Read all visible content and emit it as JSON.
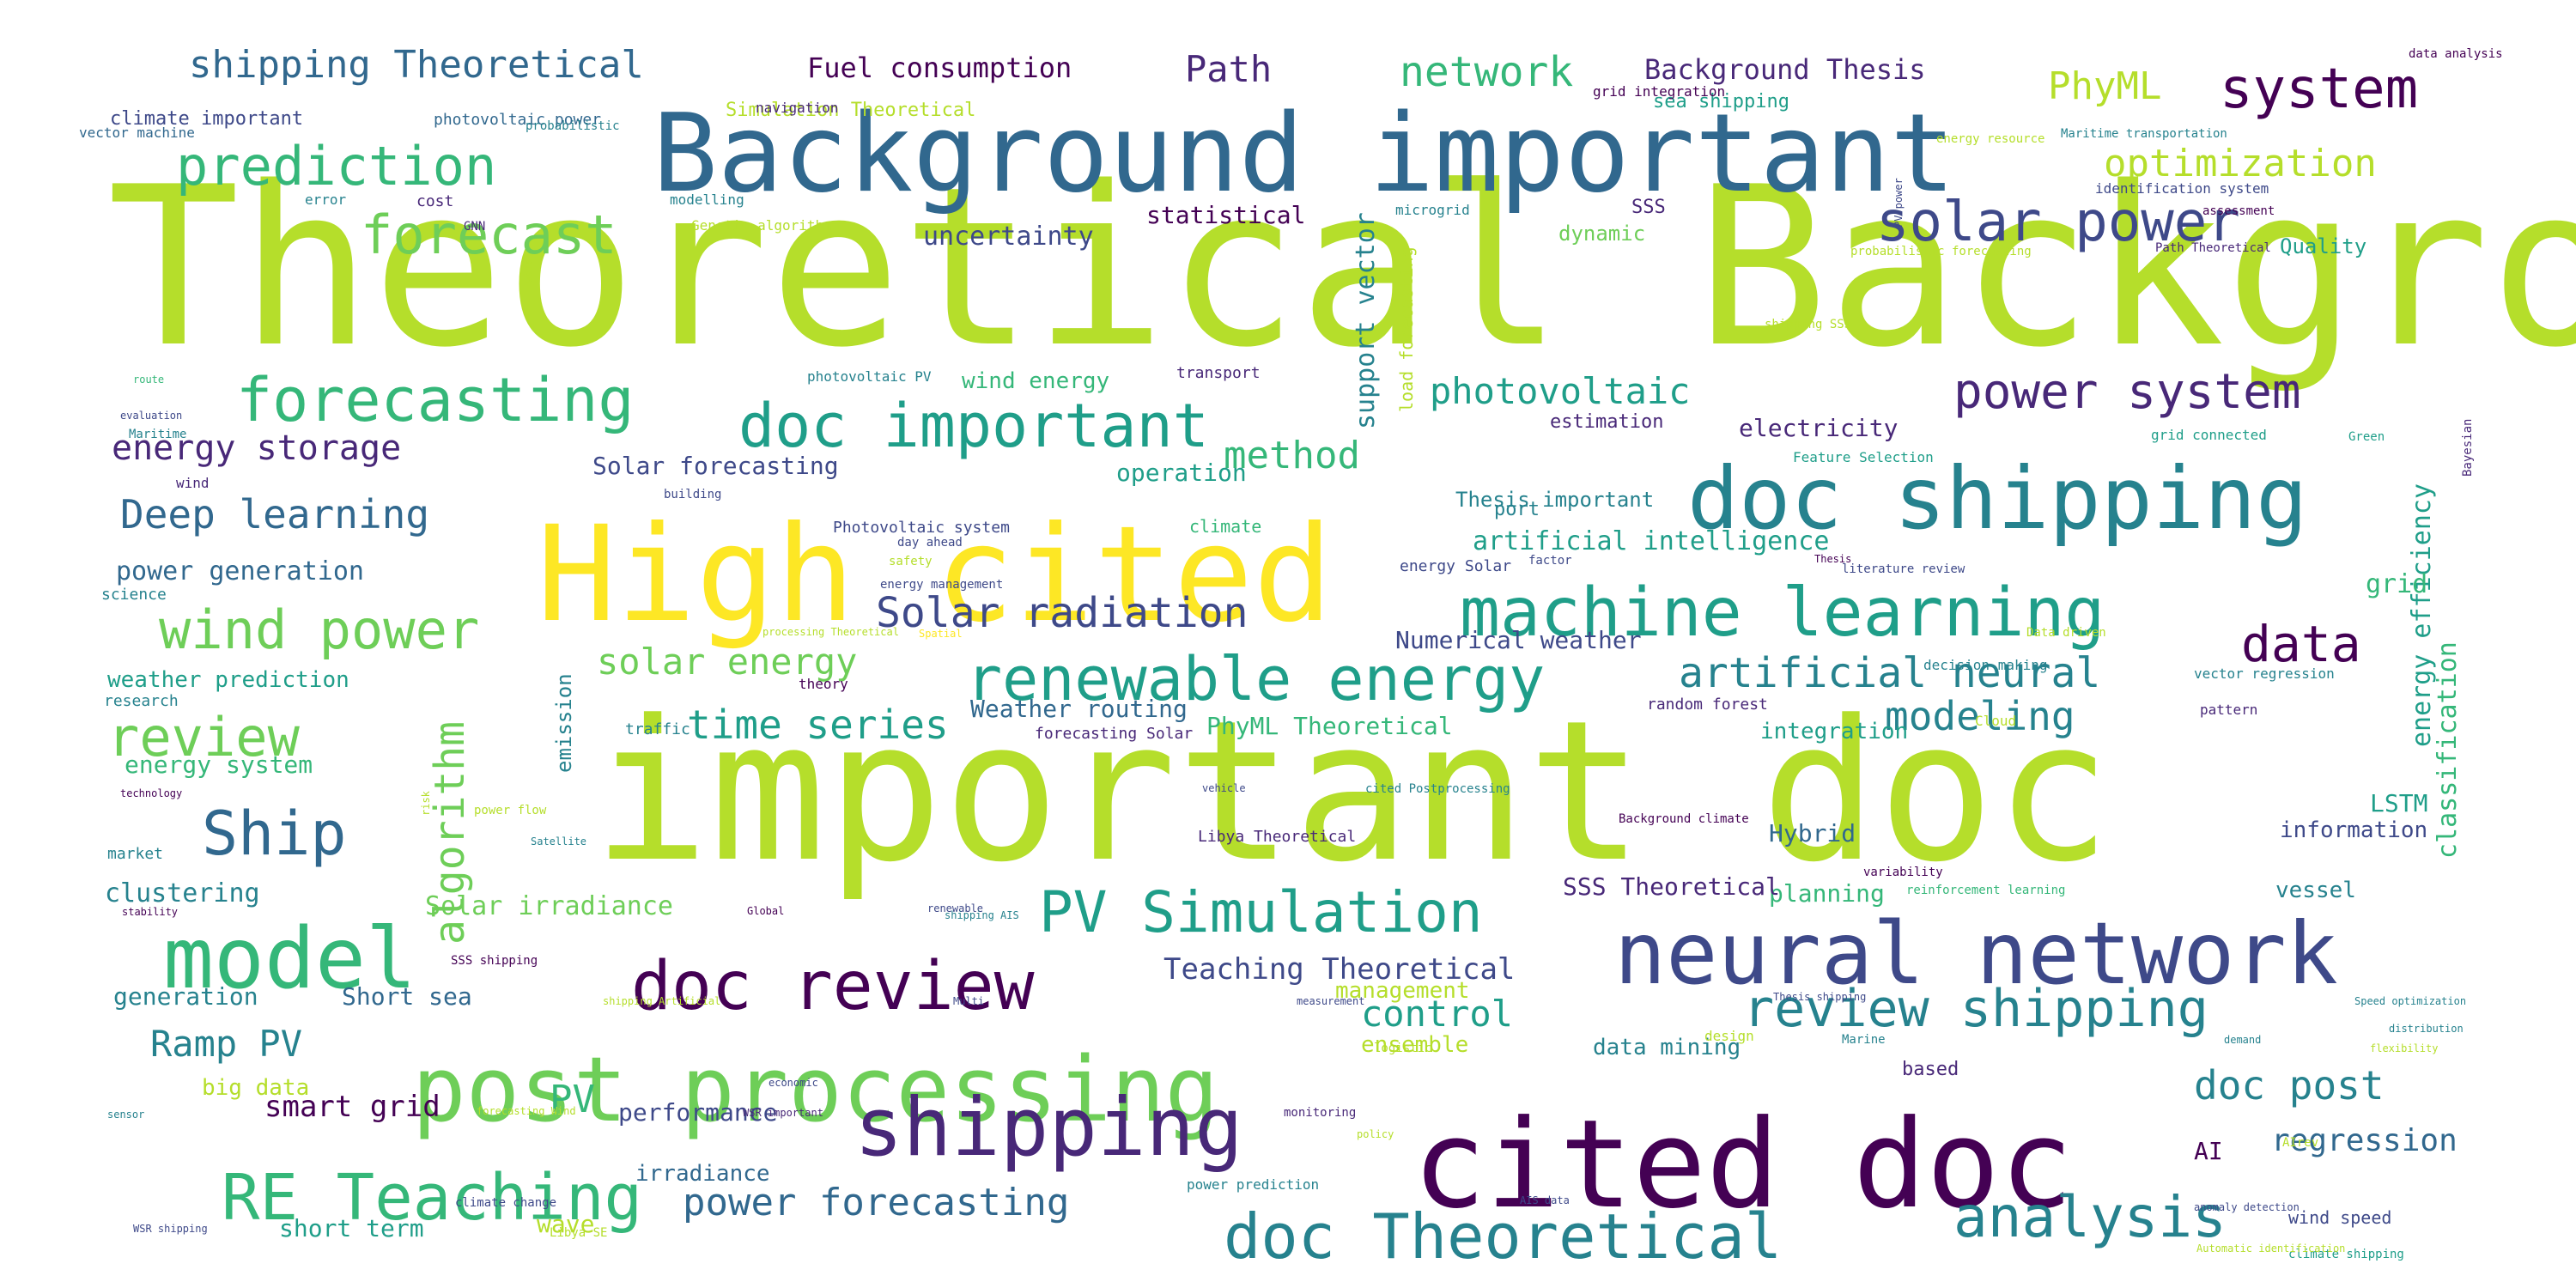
{
  "palette": [
    "#440154",
    "#482878",
    "#3e4989",
    "#31688e",
    "#26828e",
    "#1f9e89",
    "#35b779",
    "#6ece58",
    "#b5de2b",
    "#fde725"
  ],
  "words": [
    {
      "text": "Theoretical Background",
      "color": "#b5de2b"
    },
    {
      "text": "important doc",
      "color": "#b5de2b"
    },
    {
      "text": "Background important",
      "color": "#31688e"
    },
    {
      "text": "High cited",
      "color": "#fde725"
    },
    {
      "text": "cited doc",
      "color": "#440154"
    },
    {
      "text": "neural network",
      "color": "#3e4989"
    },
    {
      "text": "doc shipping",
      "color": "#26828e"
    },
    {
      "text": "post processing",
      "color": "#6ece58"
    },
    {
      "text": "machine learning",
      "color": "#1f9e89"
    },
    {
      "text": "model",
      "color": "#35b779"
    },
    {
      "text": "doc review",
      "color": "#440154"
    },
    {
      "text": "shipping",
      "color": "#482878"
    },
    {
      "text": "renewable energy",
      "color": "#1f9e89"
    },
    {
      "text": "doc Theoretical",
      "color": "#26828e"
    },
    {
      "text": "doc important",
      "color": "#1f9e89"
    },
    {
      "text": "forecasting",
      "color": "#35b779"
    },
    {
      "text": "RE Teaching",
      "color": "#35b779"
    },
    {
      "text": "PV Simulation",
      "color": "#1f9e89"
    },
    {
      "text": "review shipping",
      "color": "#26828e"
    },
    {
      "text": "solar power",
      "color": "#3e4989"
    },
    {
      "text": "power system",
      "color": "#482878"
    },
    {
      "text": "analysis",
      "color": "#26828e"
    },
    {
      "text": "system",
      "color": "#440154"
    },
    {
      "text": "prediction",
      "color": "#35b779"
    },
    {
      "text": "wind power",
      "color": "#6ece58"
    },
    {
      "text": "Ship",
      "color": "#31688e"
    },
    {
      "text": "review",
      "color": "#6ece58"
    },
    {
      "text": "forecast",
      "color": "#6ece58"
    },
    {
      "text": "data",
      "color": "#440154"
    },
    {
      "text": "artificial neural",
      "color": "#26828e"
    },
    {
      "text": "network",
      "color": "#35b779"
    },
    {
      "text": "Solar radiation",
      "color": "#3e4989"
    },
    {
      "text": "photovoltaic",
      "color": "#1f9e89"
    },
    {
      "text": "modeling",
      "color": "#26828e"
    },
    {
      "text": "time series",
      "color": "#1f9e89"
    },
    {
      "text": "optimization",
      "color": "#b5de2b"
    },
    {
      "text": "PhyML",
      "color": "#b5de2b"
    },
    {
      "text": "Deep learning",
      "color": "#31688e"
    },
    {
      "text": "shipping Theoretical",
      "color": "#31688e"
    },
    {
      "text": "energy storage",
      "color": "#482878"
    },
    {
      "text": "method",
      "color": "#35b779"
    },
    {
      "text": "Path",
      "color": "#482878"
    },
    {
      "text": "algorithm",
      "color": "#6ece58"
    },
    {
      "text": "solar energy",
      "color": "#6ece58"
    },
    {
      "text": "doc post",
      "color": "#26828e"
    },
    {
      "text": "Ramp PV",
      "color": "#26828e"
    },
    {
      "text": "control",
      "color": "#1f9e89"
    },
    {
      "text": "power forecasting",
      "color": "#31688e"
    },
    {
      "text": "Teaching Theoretical",
      "color": "#3e4989"
    },
    {
      "text": "smart grid",
      "color": "#440154"
    },
    {
      "text": "PV",
      "color": "#35b779"
    },
    {
      "text": "artificial intelligence",
      "color": "#1f9e89"
    },
    {
      "text": "Solar irradiance",
      "color": "#6ece58"
    },
    {
      "text": "clustering",
      "color": "#26828e"
    },
    {
      "text": "Background Thesis",
      "color": "#482878"
    },
    {
      "text": "Fuel consumption",
      "color": "#440154"
    },
    {
      "text": "energy system",
      "color": "#35b779"
    },
    {
      "text": "power generation",
      "color": "#31688e"
    },
    {
      "text": "classification",
      "color": "#35b779"
    },
    {
      "text": "energy efficiency",
      "color": "#1f9e89"
    },
    {
      "text": "regression",
      "color": "#31688e"
    },
    {
      "text": "uncertainty",
      "color": "#3e4989"
    },
    {
      "text": "statistical",
      "color": "#440154"
    },
    {
      "text": "support vector",
      "color": "#26828e"
    },
    {
      "text": "weather prediction",
      "color": "#1f9e89"
    },
    {
      "text": "electricity",
      "color": "#482878"
    },
    {
      "text": "Numerical weather",
      "color": "#3e4989"
    },
    {
      "text": "grid",
      "color": "#35b779"
    },
    {
      "text": "Quality",
      "color": "#1f9e89"
    },
    {
      "text": "Weather routing",
      "color": "#31688e"
    },
    {
      "text": "PhyML Theoretical",
      "color": "#35b779"
    },
    {
      "text": "integration",
      "color": "#1f9e89"
    },
    {
      "text": "operation",
      "color": "#1f9e89"
    },
    {
      "text": "Solar forecasting",
      "color": "#3e4989"
    },
    {
      "text": "Thesis important",
      "color": "#26828e"
    },
    {
      "text": "wind energy",
      "color": "#35b779"
    },
    {
      "text": "dynamic",
      "color": "#6ece58"
    },
    {
      "text": "Hybrid",
      "color": "#31688e"
    },
    {
      "text": "LSTM",
      "color": "#1f9e89"
    },
    {
      "text": "planning",
      "color": "#35b779"
    },
    {
      "text": "SSS Theoretical",
      "color": "#482878"
    },
    {
      "text": "vessel",
      "color": "#26828e"
    },
    {
      "text": "information",
      "color": "#3e4989"
    },
    {
      "text": "AI",
      "color": "#440154"
    },
    {
      "text": "big data",
      "color": "#b5de2b"
    },
    {
      "text": "ensemble",
      "color": "#b5de2b"
    },
    {
      "text": "data mining",
      "color": "#26828e"
    },
    {
      "text": "management",
      "color": "#b5de2b"
    },
    {
      "text": "performance",
      "color": "#3e4989"
    },
    {
      "text": "irradiance",
      "color": "#31688e"
    },
    {
      "text": "generation",
      "color": "#26828e"
    },
    {
      "text": "Short sea",
      "color": "#31688e"
    },
    {
      "text": "short term",
      "color": "#1f9e89"
    },
    {
      "text": "wave",
      "color": "#b5de2b"
    },
    {
      "text": "emission",
      "color": "#26828e"
    },
    {
      "text": "sea shipping",
      "color": "#1f9e89"
    },
    {
      "text": "SSS",
      "color": "#482878"
    },
    {
      "text": "load forecasting",
      "color": "#b5de2b"
    },
    {
      "text": "estimation",
      "color": "#482878"
    },
    {
      "text": "climate important",
      "color": "#3e4989"
    },
    {
      "text": "Simulation Theoretical",
      "color": "#b5de2b"
    },
    {
      "text": "cost",
      "color": "#482878"
    },
    {
      "text": "port",
      "color": "#26828e"
    },
    {
      "text": "wind speed",
      "color": "#3e4989"
    },
    {
      "text": "based",
      "color": "#482878"
    },
    {
      "text": "market",
      "color": "#26828e"
    },
    {
      "text": "science",
      "color": "#26828e"
    },
    {
      "text": "research",
      "color": "#26828e"
    },
    {
      "text": "climate",
      "color": "#35b779"
    },
    {
      "text": "traffic",
      "color": "#26828e"
    },
    {
      "text": "Photovoltaic system",
      "color": "#3e4989"
    },
    {
      "text": "forecasting Solar",
      "color": "#482878"
    },
    {
      "text": "Cloud",
      "color": "#b5de2b"
    },
    {
      "text": "random forest",
      "color": "#482878"
    },
    {
      "text": "pattern",
      "color": "#482878"
    },
    {
      "text": "vector regression",
      "color": "#26828e"
    },
    {
      "text": "decision making",
      "color": "#26828e"
    },
    {
      "text": "energy Solar",
      "color": "#3e4989"
    },
    {
      "text": "Feature Selection",
      "color": "#1f9e89"
    },
    {
      "text": "grid connected",
      "color": "#1f9e89"
    },
    {
      "text": "transport",
      "color": "#482878"
    },
    {
      "text": "photovoltaic PV",
      "color": "#26828e"
    },
    {
      "text": "photovoltaic power",
      "color": "#31688e"
    },
    {
      "text": "vector machine",
      "color": "#31688e"
    },
    {
      "text": "error",
      "color": "#26828e"
    },
    {
      "text": "modelling",
      "color": "#26828e"
    },
    {
      "text": "Genetic algorithm",
      "color": "#b5de2b"
    },
    {
      "text": "GNN",
      "color": "#482878"
    },
    {
      "text": "navigation",
      "color": "#482878"
    },
    {
      "text": "probabilistic",
      "color": "#26828e"
    },
    {
      "text": "microgrid",
      "color": "#26828e"
    },
    {
      "text": "identification system",
      "color": "#3e4989"
    },
    {
      "text": "energy resource",
      "color": "#b5de2b"
    },
    {
      "text": "assessment",
      "color": "#440154"
    },
    {
      "text": "grid integration",
      "color": "#440154"
    },
    {
      "text": "Maritime transportation",
      "color": "#26828e"
    },
    {
      "text": "data analysis",
      "color": "#440154"
    },
    {
      "text": "Path Theoretical",
      "color": "#482878"
    },
    {
      "text": "probabilistic forecasting",
      "color": "#b5de2b"
    },
    {
      "text": "Bayesian",
      "color": "#482878"
    },
    {
      "text": "shipping SSS",
      "color": "#b5de2b"
    },
    {
      "text": "Green",
      "color": "#1f9e89"
    },
    {
      "text": "route",
      "color": "#35b779"
    },
    {
      "text": "evaluation",
      "color": "#3e4989"
    },
    {
      "text": "Maritime",
      "color": "#26828e"
    },
    {
      "text": "wind",
      "color": "#482878"
    },
    {
      "text": "building",
      "color": "#3e4989"
    },
    {
      "text": "day ahead",
      "color": "#3e4989"
    },
    {
      "text": "safety",
      "color": "#b5de2b"
    },
    {
      "text": "energy management",
      "color": "#3e4989"
    },
    {
      "text": "factor",
      "color": "#3e4989"
    },
    {
      "text": "Thesis",
      "color": "#440154"
    },
    {
      "text": "literature review",
      "color": "#3e4989"
    },
    {
      "text": "processing Theoretical",
      "color": "#b5de2b"
    },
    {
      "text": "Spatial",
      "color": "#fde725"
    },
    {
      "text": "Data driven",
      "color": "#b5de2b"
    },
    {
      "text": "theory",
      "color": "#440154"
    },
    {
      "text": "technology",
      "color": "#440154"
    },
    {
      "text": "power flow",
      "color": "#b5de2b"
    },
    {
      "text": "Satellite",
      "color": "#26828e"
    },
    {
      "text": "vehicle",
      "color": "#3e4989"
    },
    {
      "text": "cited Postprocessing",
      "color": "#26828e"
    },
    {
      "text": "Libya Theoretical",
      "color": "#482878"
    },
    {
      "text": "Background climate",
      "color": "#440154"
    },
    {
      "text": "stability",
      "color": "#440154"
    },
    {
      "text": "Global",
      "color": "#440154"
    },
    {
      "text": "renewable",
      "color": "#3e4989"
    },
    {
      "text": "shipping AIS",
      "color": "#26828e"
    },
    {
      "text": "variability",
      "color": "#440154"
    },
    {
      "text": "reinforcement learning",
      "color": "#35b779"
    },
    {
      "text": "SSS shipping",
      "color": "#440154"
    },
    {
      "text": "Multi",
      "color": "#3e4989"
    },
    {
      "text": "shipping Artificial",
      "color": "#b5de2b"
    },
    {
      "text": "measurement",
      "color": "#3e4989"
    },
    {
      "text": "Thesis shipping",
      "color": "#3e4989"
    },
    {
      "text": "Speed optimization",
      "color": "#26828e"
    },
    {
      "text": "Marine",
      "color": "#26828e"
    },
    {
      "text": "demand",
      "color": "#26828e"
    },
    {
      "text": "distribution",
      "color": "#26828e"
    },
    {
      "text": "flexibility",
      "color": "#b5de2b"
    },
    {
      "text": "logistic",
      "color": "#b5de2b"
    },
    {
      "text": "design",
      "color": "#b5de2b"
    },
    {
      "text": "economic",
      "color": "#3e4989"
    },
    {
      "text": "forecasting Wind",
      "color": "#b5de2b"
    },
    {
      "text": "WSR important",
      "color": "#482878"
    },
    {
      "text": "sensor",
      "color": "#26828e"
    },
    {
      "text": "monitoring",
      "color": "#482878"
    },
    {
      "text": "policy",
      "color": "#b5de2b"
    },
    {
      "text": "AIrev",
      "color": "#b5de2b"
    },
    {
      "text": "climate change",
      "color": "#3e4989"
    },
    {
      "text": "power prediction",
      "color": "#26828e"
    },
    {
      "text": "AIS data",
      "color": "#3e4989"
    },
    {
      "text": "anomaly detection",
      "color": "#3e4989"
    },
    {
      "text": "climate shipping",
      "color": "#1f9e89"
    },
    {
      "text": "Automatic identification",
      "color": "#b5de2b"
    },
    {
      "text": "WSR shipping",
      "color": "#3e4989"
    },
    {
      "text": "Libya SE",
      "color": "#b5de2b"
    },
    {
      "text": "risk",
      "color": "#b5de2b"
    },
    {
      "text": "water",
      "color": "#b5de2b"
    },
    {
      "text": "PV power",
      "color": "#3e4989"
    }
  ]
}
